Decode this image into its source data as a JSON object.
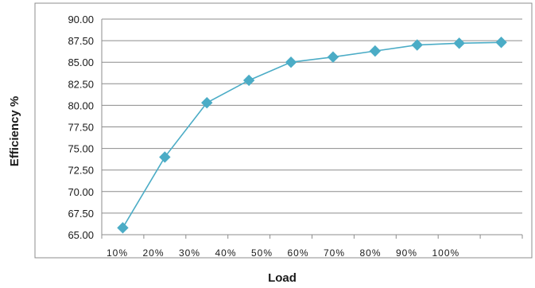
{
  "chart_data": {
    "type": "line",
    "title": "",
    "xlabel": "Load",
    "ylabel": "Efficiency %",
    "ylim": [
      65,
      90
    ],
    "yticks": [
      "65.00",
      "67.50",
      "70.00",
      "72.50",
      "75.00",
      "77.50",
      "80.00",
      "82.50",
      "85.00",
      "87.50",
      "90.00"
    ],
    "categories": [
      "10%",
      "20%",
      "30%",
      "40%",
      "50%",
      "60%",
      "70%",
      "80%",
      "90%",
      "100%"
    ],
    "grid": true,
    "legend": "none",
    "series": [
      {
        "color": "#4BACC6",
        "values": [
          65.8,
          74.0,
          80.3,
          82.9,
          85.0,
          85.6,
          86.3,
          87.0,
          87.2,
          87.3
        ]
      }
    ]
  }
}
